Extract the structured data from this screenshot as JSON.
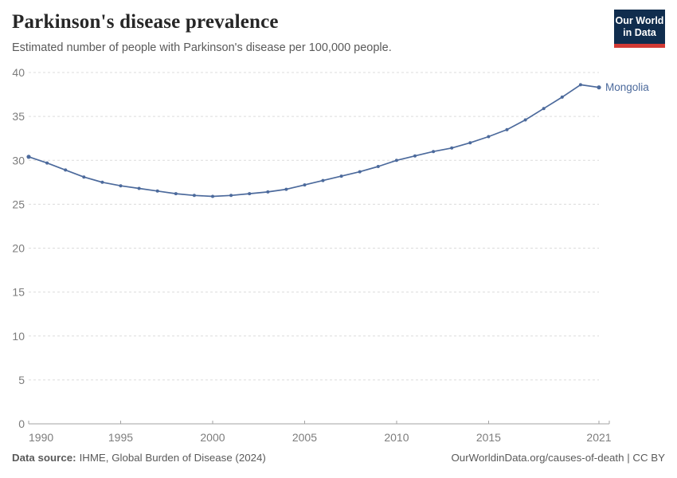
{
  "header": {
    "title": "Parkinson's disease prevalence",
    "subtitle": "Estimated number of people with Parkinson's disease per 100,000 people.",
    "logo": {
      "line1": "Our World",
      "line2": "in Data"
    }
  },
  "footer": {
    "source_label": "Data source:",
    "source_text": "IHME, Global Burden of Disease (2024)",
    "link_text": "OurWorldinData.org/causes-of-death",
    "license": " | CC BY"
  },
  "colors": {
    "line": "#4c6a9c",
    "grid": "#dcdcdc",
    "axis": "#a3a3a3",
    "tick_label": "#7c7c7c",
    "title": "#262626",
    "subtitle": "#5a5a5a",
    "logo_bg": "#102d4e",
    "logo_red": "#d23a34"
  },
  "chart_data": {
    "type": "line",
    "title": "Parkinson's disease prevalence",
    "subtitle": "Estimated number of people with Parkinson's disease per 100,000 people.",
    "entity_label": "Mongolia",
    "xlabel": "",
    "ylabel": "",
    "ylim": [
      0,
      40
    ],
    "yticks": [
      0,
      5,
      10,
      15,
      20,
      25,
      30,
      35,
      40
    ],
    "xticks": [
      1990,
      1995,
      2000,
      2005,
      2010,
      2015,
      2021
    ],
    "grid": "horizontal-dashed",
    "legend_position": "end-of-line-label",
    "x": [
      1990,
      1991,
      1992,
      1993,
      1994,
      1995,
      1996,
      1997,
      1998,
      1999,
      2000,
      2001,
      2002,
      2003,
      2004,
      2005,
      2006,
      2007,
      2008,
      2009,
      2010,
      2011,
      2012,
      2013,
      2014,
      2015,
      2016,
      2017,
      2018,
      2019,
      2020,
      2021
    ],
    "series": [
      {
        "name": "Mongolia",
        "color": "#4c6a9c",
        "values": [
          30.4,
          29.7,
          28.9,
          28.1,
          27.5,
          27.1,
          26.8,
          26.5,
          26.2,
          26.0,
          25.9,
          26.0,
          26.2,
          26.4,
          26.7,
          27.2,
          27.7,
          28.2,
          28.7,
          29.3,
          30.0,
          30.5,
          31.0,
          31.4,
          32.0,
          32.7,
          33.5,
          34.6,
          35.9,
          37.2,
          38.6,
          38.3
        ]
      }
    ]
  }
}
